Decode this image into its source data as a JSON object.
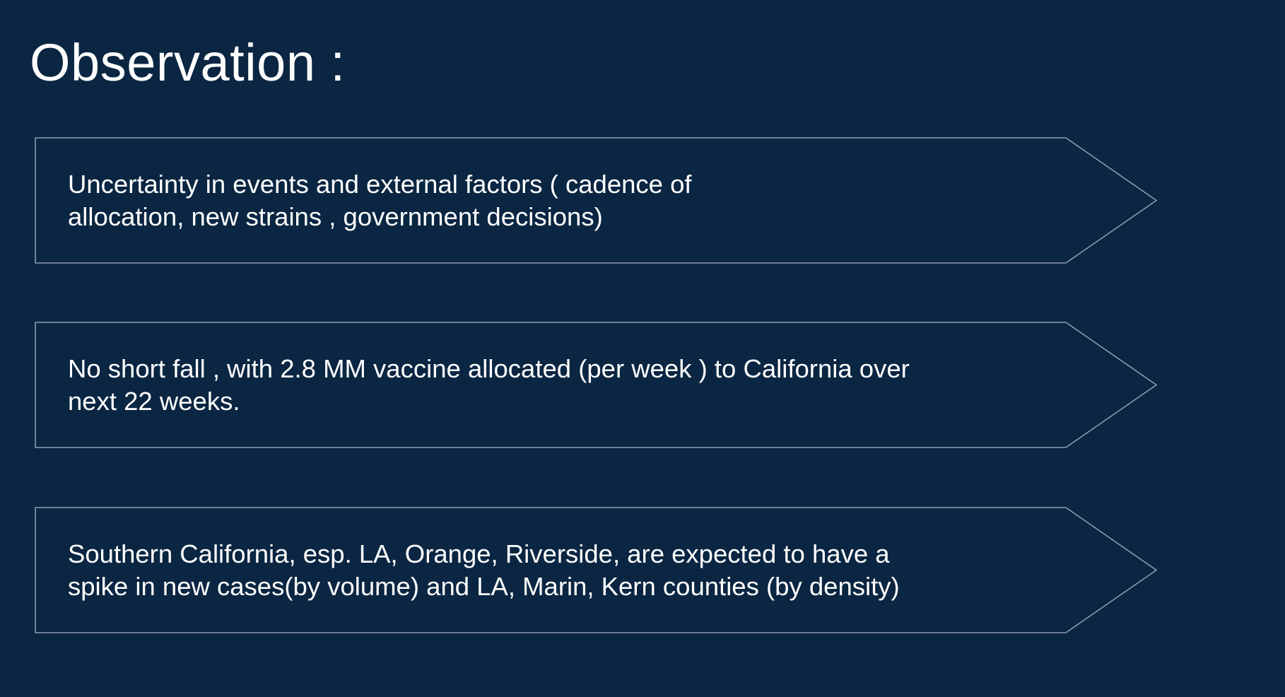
{
  "slide": {
    "title": "Observation :",
    "colors": {
      "background": "#0b2642",
      "text": "#ffffff",
      "outline": "#8c9bb0"
    }
  },
  "observations": [
    {
      "lines": [
        "Uncertainty in events and external factors ( cadence of",
        "allocation, new strains , government decisions)"
      ]
    },
    {
      "lines": [
        "No short fall , with 2.8 MM vaccine allocated (per week ) to California over",
        "next 22 weeks."
      ]
    },
    {
      "lines": [
        "Southern California, esp. LA, Orange, Riverside,  are expected to have a",
        "spike in new cases(by volume) and LA, Marin, Kern counties (by density)"
      ]
    }
  ]
}
